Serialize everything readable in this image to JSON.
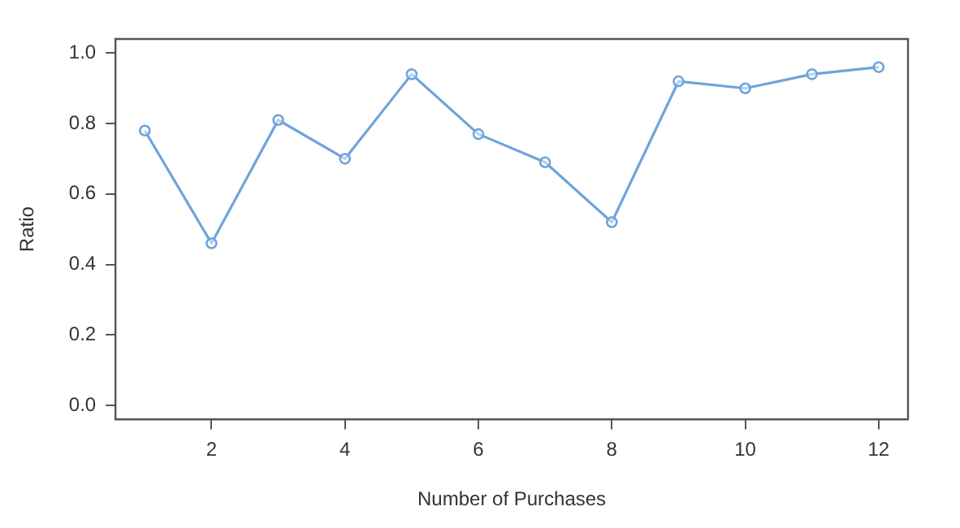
{
  "chart_data": {
    "type": "line",
    "xlabel": "Number of Purchases",
    "ylabel": "Ratio",
    "x": [
      1,
      2,
      3,
      4,
      5,
      6,
      7,
      8,
      9,
      10,
      11,
      12
    ],
    "series": [
      {
        "color": "#6fa3dc",
        "values": [
          0.78,
          0.46,
          0.81,
          0.7,
          0.94,
          0.77,
          0.69,
          0.52,
          0.92,
          0.9,
          0.94,
          0.96
        ]
      }
    ],
    "xlim": [
      0.56,
      12.44
    ],
    "xticks": [
      2,
      4,
      6,
      8,
      10,
      12
    ],
    "ylim": [
      -0.04,
      1.04
    ],
    "yticks": [
      {
        "value": 0,
        "label": "0.0"
      },
      {
        "value": 0.2,
        "label": "0.2"
      },
      {
        "value": 0.4,
        "label": "0.4"
      },
      {
        "value": 0.6,
        "label": "0.6"
      },
      {
        "value": 0.8,
        "label": "0.8"
      },
      {
        "value": 1,
        "label": "1.0"
      }
    ],
    "grid": false,
    "legend": false,
    "marker": "circle",
    "line_style": "solid"
  }
}
